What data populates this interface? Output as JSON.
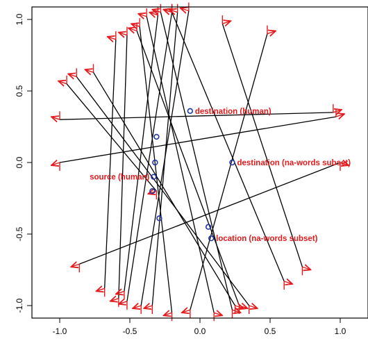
{
  "chart_data": {
    "type": "scatter",
    "title": "",
    "xlabel": "",
    "ylabel": "",
    "xlim": [
      -1.05,
      1.1
    ],
    "ylim": [
      -1.08,
      1.05
    ],
    "grid": false,
    "legend": "none",
    "xticks": [
      "-1.0",
      "-0.5",
      "0.0",
      "0.5",
      "1.0"
    ],
    "yticks": [
      "-1.0",
      "-0.5",
      "0.0",
      "0.5",
      "1.0"
    ],
    "xtick_values": [
      -1.0,
      -0.5,
      0.0,
      0.5,
      1.0
    ],
    "ytick_values": [
      -1.0,
      -0.5,
      0.0,
      0.5,
      1.0
    ],
    "colors": {
      "segment": "#000000",
      "arrow": "#e41a1c",
      "point": "#1f35a8",
      "label": "#e41a1c"
    },
    "points": [
      {
        "x": -0.31,
        "y": 0.18
      },
      {
        "x": -0.32,
        "y": 0.0
      },
      {
        "x": -0.33,
        "y": -0.1
      },
      {
        "x": -0.34,
        "y": -0.2
      },
      {
        "x": -0.29,
        "y": -0.39
      },
      {
        "x": -0.07,
        "y": 0.36
      },
      {
        "x": 0.23,
        "y": 0.0
      },
      {
        "x": 0.06,
        "y": -0.45
      },
      {
        "x": 0.08,
        "y": -0.53
      }
    ],
    "annotations": [
      {
        "text": "destination (human)",
        "x": -0.07,
        "y": 0.36,
        "anchor": "right"
      },
      {
        "text": "destination (na-words subset)",
        "x": 0.23,
        "y": 0.0,
        "anchor": "right"
      },
      {
        "text": "source (human)",
        "x": -0.33,
        "y": -0.1,
        "anchor": "left"
      },
      {
        "text": "location (na-words subset)",
        "x": 0.08,
        "y": -0.53,
        "anchor": "right"
      }
    ],
    "segments": [
      {
        "x1": -1.0,
        "y1": 0.3,
        "x2": 0.95,
        "y2": 0.35
      },
      {
        "x1": -1.0,
        "y1": 0.0,
        "x2": 0.97,
        "y2": 0.32
      },
      {
        "x1": -0.86,
        "y1": -0.71,
        "x2": 1.0,
        "y2": 0.0
      },
      {
        "x1": -0.95,
        "y1": 0.55,
        "x2": -0.31,
        "y2": -0.2
      },
      {
        "x1": -0.88,
        "y1": 0.6,
        "x2": 0.35,
        "y2": -1.0
      },
      {
        "x1": -0.76,
        "y1": 0.63,
        "x2": 0.25,
        "y2": -1.0
      },
      {
        "x1": -0.68,
        "y1": -0.88,
        "x2": -0.6,
        "y2": 0.86
      },
      {
        "x1": -0.58,
        "y1": -0.95,
        "x2": -0.52,
        "y2": 0.89
      },
      {
        "x1": -0.54,
        "y1": -0.9,
        "x2": -0.3,
        "y2": 1.03
      },
      {
        "x1": -0.52,
        "y1": -0.97,
        "x2": -0.2,
        "y2": 1.05
      },
      {
        "x1": -0.42,
        "y1": -1.0,
        "x2": -0.08,
        "y2": 1.06
      },
      {
        "x1": -0.34,
        "y1": -1.0,
        "x2": -0.16,
        "y2": 1.05
      },
      {
        "x1": -0.2,
        "y1": -1.05,
        "x2": -0.43,
        "y2": 0.95
      },
      {
        "x1": -0.07,
        "y1": -1.03,
        "x2": 0.48,
        "y2": 0.9
      },
      {
        "x1": 0.1,
        "y1": -1.05,
        "x2": -0.38,
        "y2": 1.02
      },
      {
        "x1": 0.23,
        "y1": -1.03,
        "x2": -0.28,
        "y2": 1.05
      },
      {
        "x1": 0.28,
        "y1": -1.0,
        "x2": -0.45,
        "y2": 0.92
      },
      {
        "x1": 0.6,
        "y1": -0.83,
        "x2": -0.2,
        "y2": 1.05
      },
      {
        "x1": 0.73,
        "y1": -0.73,
        "x2": 0.16,
        "y2": 0.97
      }
    ]
  }
}
